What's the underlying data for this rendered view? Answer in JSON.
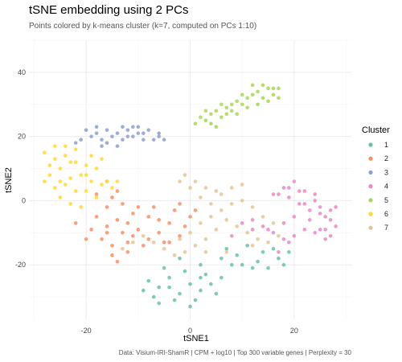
{
  "chart_data": {
    "type": "scatter",
    "title": "tSNE embedding using 2 PCs",
    "subtitle": "Points colored by k-means cluster (k=7, computed on PCs 1:10)",
    "xlabel": "tSNE1",
    "ylabel": "tSNE2",
    "caption": "Data: Visium-IRI-ShamR | CPM + log10 | Top 300 variable genes | Perplexity = 30",
    "xlim": [
      -31,
      31
    ],
    "ylim": [
      -37,
      50
    ],
    "xticks": [
      -20,
      0,
      20
    ],
    "yticks": [
      -20,
      0,
      20,
      40
    ],
    "grid": true,
    "legend": {
      "title": "Cluster",
      "position": "right"
    },
    "series": [
      {
        "name": "1",
        "color": "#66C2A5",
        "points": [
          [
            -8,
            -25
          ],
          [
            -6,
            -27
          ],
          [
            -4,
            -24
          ],
          [
            -2,
            -29
          ],
          [
            0,
            -26
          ],
          [
            2,
            -28
          ],
          [
            -7,
            -30
          ],
          [
            -3,
            -31
          ],
          [
            1,
            -31
          ],
          [
            4,
            -26
          ],
          [
            5,
            -29
          ],
          [
            -1,
            -22
          ],
          [
            -5,
            -21
          ],
          [
            3,
            -23
          ],
          [
            -9,
            -28
          ],
          [
            6,
            -24
          ],
          [
            -6,
            -32
          ],
          [
            0,
            -33
          ],
          [
            2,
            -24
          ],
          [
            -4,
            -27
          ],
          [
            7,
            -15
          ],
          [
            9,
            -17
          ],
          [
            11,
            -14
          ],
          [
            13,
            -19
          ],
          [
            15,
            -21
          ],
          [
            17,
            -18
          ],
          [
            12,
            -21
          ],
          [
            16,
            -15
          ],
          [
            10,
            -20
          ],
          [
            14,
            -16
          ],
          [
            18,
            -20
          ],
          [
            6,
            -18
          ],
          [
            8,
            -20
          ],
          [
            19,
            -16
          ],
          [
            2,
            -20
          ],
          [
            -2,
            -18
          ]
        ]
      },
      {
        "name": "2",
        "color": "#FC8D62",
        "points": [
          [
            -18,
            -5
          ],
          [
            -16,
            -8
          ],
          [
            -14,
            -6
          ],
          [
            -17,
            -12
          ],
          [
            -13,
            -10
          ],
          [
            -15,
            -14
          ],
          [
            -19,
            -9
          ],
          [
            -12,
            -7
          ],
          [
            -11,
            -4
          ],
          [
            -10,
            -9
          ],
          [
            -8,
            -12
          ],
          [
            -6,
            -10
          ],
          [
            -4,
            -7
          ],
          [
            -2,
            -11
          ],
          [
            0,
            -5
          ],
          [
            -3,
            -3
          ],
          [
            -7,
            -2
          ],
          [
            -5,
            -13
          ],
          [
            -1,
            -8
          ],
          [
            1,
            -3
          ],
          [
            -20,
            -12
          ],
          [
            -15,
            -17
          ],
          [
            -14,
            -19
          ],
          [
            -16,
            -2
          ],
          [
            -18,
            2
          ],
          [
            -15,
            1
          ],
          [
            -13,
            -1
          ],
          [
            -12,
            -13
          ],
          [
            -9,
            -14
          ],
          [
            -6,
            -6
          ],
          [
            -2,
            -1
          ],
          [
            -4,
            -13
          ],
          [
            -10,
            -2
          ],
          [
            -16,
            -10
          ],
          [
            -11,
            -11
          ],
          [
            -14,
            3
          ],
          [
            -16,
            6
          ],
          [
            -22,
            -7
          ],
          [
            -8,
            -5
          ],
          [
            -12,
            -16
          ]
        ]
      },
      {
        "name": "3",
        "color": "#8DA0CB",
        "points": [
          [
            -20,
            22
          ],
          [
            -18,
            23
          ],
          [
            -16,
            22
          ],
          [
            -14,
            21
          ],
          [
            -12,
            22
          ],
          [
            -10,
            23
          ],
          [
            -8,
            22
          ],
          [
            -6,
            20
          ],
          [
            -5,
            19
          ],
          [
            -19,
            20
          ],
          [
            -17,
            19
          ],
          [
            -15,
            20
          ],
          [
            -13,
            19
          ],
          [
            -11,
            20
          ],
          [
            -9,
            21
          ],
          [
            -7,
            19
          ],
          [
            -21,
            19
          ],
          [
            -17,
            17
          ],
          [
            -14,
            17
          ],
          [
            -11,
            23
          ],
          [
            -9,
            19
          ],
          [
            -13,
            23
          ],
          [
            -16,
            18
          ],
          [
            -18,
            21
          ],
          [
            -10,
            21
          ],
          [
            -6,
            21
          ],
          [
            -22,
            18
          ],
          [
            -12,
            20
          ]
        ]
      },
      {
        "name": "4",
        "color": "#E78AC3",
        "points": [
          [
            17,
            2
          ],
          [
            18,
            4
          ],
          [
            19,
            1
          ],
          [
            20,
            6
          ],
          [
            21,
            3
          ],
          [
            22,
            -1
          ],
          [
            23,
            -3
          ],
          [
            24,
            0
          ],
          [
            25,
            -2
          ],
          [
            26,
            -5
          ],
          [
            27,
            -3
          ],
          [
            28,
            -8
          ],
          [
            25,
            -9
          ],
          [
            26,
            -12
          ],
          [
            24,
            -10
          ],
          [
            27,
            -11
          ],
          [
            22,
            -9
          ],
          [
            20,
            -5
          ],
          [
            18,
            -7
          ],
          [
            16,
            -10
          ],
          [
            14,
            -8
          ],
          [
            12,
            -9
          ],
          [
            10,
            -7
          ],
          [
            8,
            -11
          ],
          [
            19,
            -13
          ],
          [
            17,
            -16
          ],
          [
            16,
            2
          ],
          [
            21,
            -1
          ],
          [
            23,
            -6
          ],
          [
            25,
            -4
          ],
          [
            28,
            -2
          ],
          [
            26,
            -9
          ],
          [
            20,
            -11
          ],
          [
            18,
            -12
          ],
          [
            15,
            -9
          ],
          [
            12,
            -6
          ],
          [
            19,
            4
          ],
          [
            22,
            3
          ],
          [
            24,
            2
          ],
          [
            27,
            -6
          ]
        ]
      },
      {
        "name": "5",
        "color": "#A6D854",
        "points": [
          [
            3,
            25
          ],
          [
            4,
            27
          ],
          [
            5,
            28
          ],
          [
            6,
            26
          ],
          [
            7,
            29
          ],
          [
            8,
            30
          ],
          [
            9,
            31
          ],
          [
            10,
            30
          ],
          [
            11,
            32
          ],
          [
            12,
            33
          ],
          [
            13,
            34
          ],
          [
            14,
            32
          ],
          [
            15,
            35
          ],
          [
            16,
            33
          ],
          [
            17,
            32
          ],
          [
            12,
            36
          ],
          [
            10,
            33
          ],
          [
            8,
            28
          ],
          [
            6,
            30
          ],
          [
            4,
            24
          ],
          [
            2,
            26
          ],
          [
            5,
            23
          ],
          [
            9,
            27
          ],
          [
            13,
            30
          ],
          [
            16,
            35
          ],
          [
            11,
            29
          ],
          [
            14,
            36
          ],
          [
            7,
            27
          ],
          [
            3,
            28
          ],
          [
            15,
            31
          ],
          [
            17,
            35
          ],
          [
            1,
            24
          ]
        ]
      },
      {
        "name": "6",
        "color": "#FFD92F",
        "points": [
          [
            -28,
            15
          ],
          [
            -26,
            13
          ],
          [
            -24,
            14
          ],
          [
            -22,
            12
          ],
          [
            -20,
            11
          ],
          [
            -18,
            10
          ],
          [
            -25,
            10
          ],
          [
            -27,
            8
          ],
          [
            -23,
            7
          ],
          [
            -21,
            8
          ],
          [
            -19,
            6
          ],
          [
            -17,
            5
          ],
          [
            -24,
            5
          ],
          [
            -26,
            4
          ],
          [
            -28,
            6
          ],
          [
            -22,
            3
          ],
          [
            -20,
            3
          ],
          [
            -18,
            1
          ],
          [
            -16,
            6
          ],
          [
            -14,
            6
          ],
          [
            -26,
            17
          ],
          [
            -24,
            17
          ],
          [
            -22,
            16
          ],
          [
            -25,
            1
          ],
          [
            -23,
            -1
          ],
          [
            -21,
            -2
          ],
          [
            -27,
            11
          ],
          [
            -19,
            14
          ],
          [
            -17,
            13
          ],
          [
            -25,
            6
          ],
          [
            -23,
            12
          ],
          [
            -20,
            8
          ],
          [
            -15,
            4
          ]
        ]
      },
      {
        "name": "7",
        "color": "#E5C494",
        "points": [
          [
            -1,
            8
          ],
          [
            1,
            6
          ],
          [
            3,
            4
          ],
          [
            5,
            3
          ],
          [
            2,
            1
          ],
          [
            4,
            -1
          ],
          [
            6,
            -3
          ],
          [
            8,
            -1
          ],
          [
            10,
            0
          ],
          [
            12,
            -2
          ],
          [
            14,
            -5
          ],
          [
            16,
            -7
          ],
          [
            7,
            -6
          ],
          [
            9,
            -8
          ],
          [
            11,
            -10
          ],
          [
            13,
            -12
          ],
          [
            15,
            -13
          ],
          [
            5,
            -9
          ],
          [
            3,
            -12
          ],
          [
            1,
            -14
          ],
          [
            -1,
            -16
          ],
          [
            -3,
            -17
          ],
          [
            -5,
            -15
          ],
          [
            -7,
            -13
          ],
          [
            -9,
            -11
          ],
          [
            -11,
            -13
          ],
          [
            -13,
            -15
          ],
          [
            -2,
            -12
          ],
          [
            0,
            -10
          ],
          [
            2,
            -7
          ],
          [
            4,
            -5
          ],
          [
            6,
            2
          ],
          [
            8,
            4
          ],
          [
            10,
            5
          ],
          [
            0,
            4
          ],
          [
            -2,
            6
          ],
          [
            3,
            -16
          ],
          [
            7,
            -16
          ],
          [
            12,
            -14
          ],
          [
            17,
            -11
          ]
        ]
      }
    ]
  }
}
